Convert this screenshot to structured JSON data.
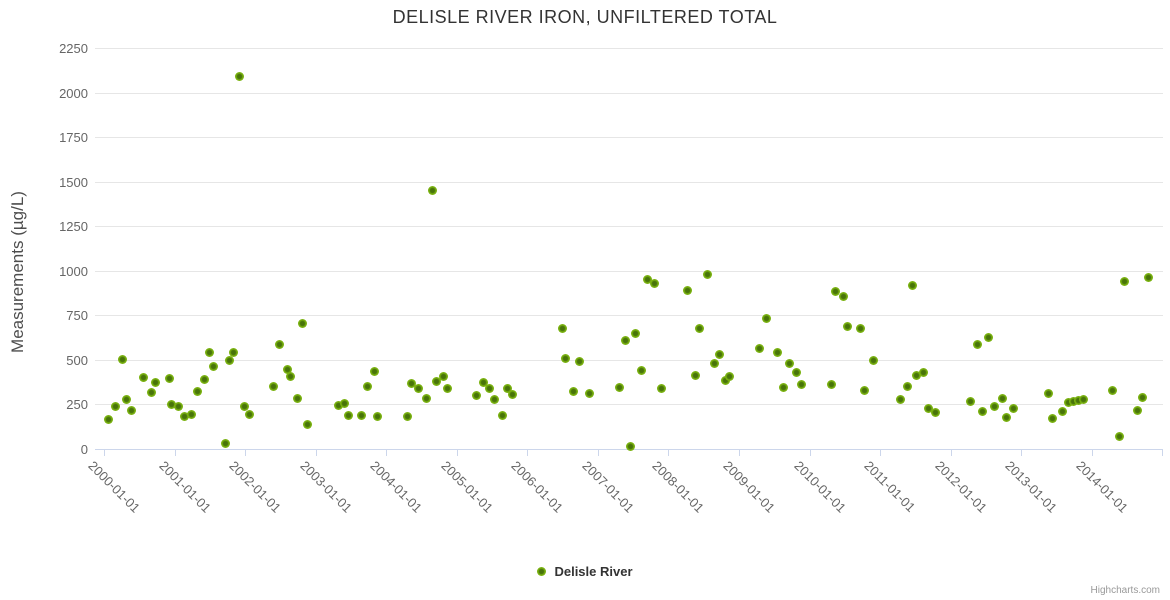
{
  "title": "DELISLE RIVER IRON, UNFILTERED TOTAL",
  "legend": {
    "series_label": "Delisle River"
  },
  "credits": "Highcharts.com",
  "colors": {
    "marker_outer": "#7ab210",
    "marker_center": "#48740a",
    "gridline": "#e6e6e6",
    "axis_line": "#ccd6eb",
    "axis_label": "#666666",
    "title_text": "#333333"
  },
  "chart_data": {
    "type": "scatter",
    "title": "DELISLE RIVER IRON, UNFILTERED TOTAL",
    "xlabel": "",
    "ylabel": "Measurements (µg/L)",
    "ylim": [
      0,
      2250
    ],
    "y_ticks": [
      0,
      250,
      500,
      750,
      1000,
      1250,
      1500,
      1750,
      2000,
      2250
    ],
    "x_tick_labels": [
      "2000-01-01",
      "2001-01-01",
      "2002-01-01",
      "2003-01-01",
      "2004-01-01",
      "2005-01-01",
      "2006-01-01",
      "2007-01-01",
      "2008-01-01",
      "2009-01-01",
      "2010-01-01",
      "2011-01-01",
      "2012-01-01",
      "2013-01-01",
      "2014-01-01"
    ],
    "x_range": [
      "1999-11-15",
      "2015-01-01"
    ],
    "grid": true,
    "legend_position": "bottom-center",
    "series": [
      {
        "name": "Delisle River",
        "points": [
          [
            "2000-01-25",
            165
          ],
          [
            "2000-03-01",
            240
          ],
          [
            "2000-04-08",
            500
          ],
          [
            "2000-04-25",
            280
          ],
          [
            "2000-05-25",
            215
          ],
          [
            "2000-07-25",
            400
          ],
          [
            "2000-09-03",
            315
          ],
          [
            "2000-09-24",
            375
          ],
          [
            "2000-12-08",
            395
          ],
          [
            "2000-12-18",
            250
          ],
          [
            "2001-01-22",
            240
          ],
          [
            "2001-02-20",
            180
          ],
          [
            "2001-03-29",
            195
          ],
          [
            "2001-05-01",
            320
          ],
          [
            "2001-06-07",
            390
          ],
          [
            "2001-07-02",
            540
          ],
          [
            "2001-07-24",
            465
          ],
          [
            "2001-09-20",
            30
          ],
          [
            "2001-10-10",
            495
          ],
          [
            "2001-10-31",
            540
          ],
          [
            "2001-12-03",
            2090
          ],
          [
            "2001-12-28",
            240
          ],
          [
            "2002-01-22",
            195
          ],
          [
            "2002-05-30",
            350
          ],
          [
            "2002-06-27",
            585
          ],
          [
            "2002-08-08",
            445
          ],
          [
            "2002-08-26",
            405
          ],
          [
            "2002-10-01",
            285
          ],
          [
            "2002-10-23",
            705
          ],
          [
            "2002-11-20",
            140
          ],
          [
            "2003-04-28",
            245
          ],
          [
            "2003-05-29",
            255
          ],
          [
            "2003-06-21",
            190
          ],
          [
            "2003-08-26",
            190
          ],
          [
            "2003-09-27",
            350
          ],
          [
            "2003-11-02",
            435
          ],
          [
            "2003-11-18",
            185
          ],
          [
            "2004-04-20",
            180
          ],
          [
            "2004-05-12",
            370
          ],
          [
            "2004-06-16",
            340
          ],
          [
            "2004-07-28",
            285
          ],
          [
            "2004-08-28",
            1450
          ],
          [
            "2004-09-18",
            380
          ],
          [
            "2004-10-25",
            405
          ],
          [
            "2004-11-16",
            340
          ],
          [
            "2005-04-13",
            300
          ],
          [
            "2005-05-17",
            375
          ],
          [
            "2005-06-20",
            340
          ],
          [
            "2005-07-16",
            280
          ],
          [
            "2005-08-24",
            190
          ],
          [
            "2005-09-19",
            340
          ],
          [
            "2005-10-18",
            305
          ],
          [
            "2006-07-01",
            675
          ],
          [
            "2006-07-18",
            510
          ],
          [
            "2006-08-27",
            320
          ],
          [
            "2006-09-27",
            490
          ],
          [
            "2006-11-21",
            310
          ],
          [
            "2007-04-24",
            345
          ],
          [
            "2007-05-25",
            610
          ],
          [
            "2007-06-20",
            15
          ],
          [
            "2007-07-14",
            650
          ],
          [
            "2007-08-14",
            440
          ],
          [
            "2007-09-15",
            950
          ],
          [
            "2007-10-19",
            930
          ],
          [
            "2007-11-28",
            340
          ],
          [
            "2008-04-08",
            890
          ],
          [
            "2008-05-21",
            410
          ],
          [
            "2008-06-13",
            675
          ],
          [
            "2008-07-23",
            980
          ],
          [
            "2008-08-30",
            480
          ],
          [
            "2008-09-20",
            530
          ],
          [
            "2008-10-21",
            385
          ],
          [
            "2008-11-15",
            405
          ],
          [
            "2009-04-16",
            565
          ],
          [
            "2009-05-24",
            735
          ],
          [
            "2009-07-20",
            540
          ],
          [
            "2009-08-18",
            345
          ],
          [
            "2009-09-21",
            480
          ],
          [
            "2009-10-26",
            430
          ],
          [
            "2009-11-21",
            360
          ],
          [
            "2010-04-23",
            360
          ],
          [
            "2010-05-18",
            885
          ],
          [
            "2010-06-24",
            855
          ],
          [
            "2010-07-17",
            685
          ],
          [
            "2010-09-24",
            675
          ],
          [
            "2010-10-15",
            330
          ],
          [
            "2010-11-27",
            495
          ],
          [
            "2011-04-19",
            275
          ],
          [
            "2011-05-23",
            350
          ],
          [
            "2011-06-16",
            915
          ],
          [
            "2011-07-10",
            410
          ],
          [
            "2011-08-13",
            430
          ],
          [
            "2011-09-08",
            225
          ],
          [
            "2011-10-16",
            205
          ],
          [
            "2012-04-16",
            268
          ],
          [
            "2012-05-21",
            585
          ],
          [
            "2012-06-13",
            212
          ],
          [
            "2012-07-16",
            625
          ],
          [
            "2012-08-17",
            240
          ],
          [
            "2012-09-26",
            285
          ],
          [
            "2012-10-19",
            175
          ],
          [
            "2012-11-21",
            225
          ],
          [
            "2013-05-21",
            310
          ],
          [
            "2013-06-13",
            170
          ],
          [
            "2013-08-03",
            210
          ],
          [
            "2013-09-05",
            262
          ],
          [
            "2013-10-01",
            268
          ],
          [
            "2013-10-23",
            270
          ],
          [
            "2013-11-21",
            278
          ],
          [
            "2014-04-20",
            330
          ],
          [
            "2014-05-23",
            70
          ],
          [
            "2014-06-21",
            940
          ],
          [
            "2014-08-25",
            215
          ],
          [
            "2014-09-19",
            290
          ],
          [
            "2014-10-24",
            965
          ]
        ]
      }
    ]
  }
}
